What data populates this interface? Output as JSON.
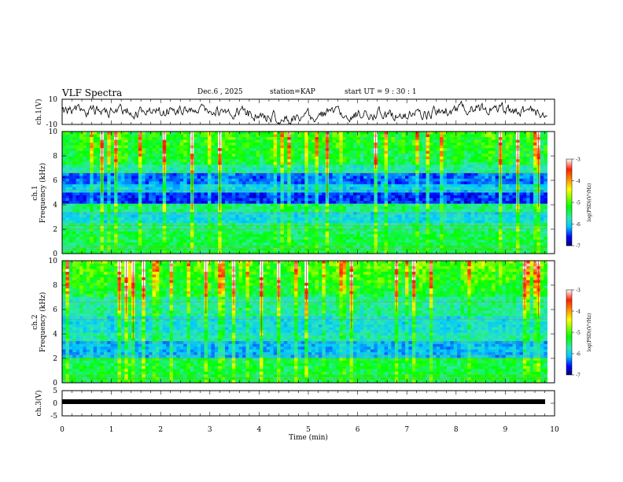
{
  "header": {
    "title": "VLF Spectra",
    "date": "Dec.6 , 2025",
    "station": "station=KAP",
    "start": "start UT = 9 : 30 : 1"
  },
  "colors": {
    "colormap": [
      "#00006e",
      "#0000ff",
      "#00c8ff",
      "#30e8b0",
      "#00ff00",
      "#ffff00",
      "#ff2000",
      "#ffffff"
    ]
  },
  "chart_data": [
    {
      "type": "line",
      "name": "ch1-voltage",
      "ylabel": "ch.1(V)",
      "ylim": [
        -10,
        10
      ],
      "yticks": [
        10,
        -10
      ],
      "xlim": [
        0,
        10
      ],
      "note": "noisy voltage trace, approximately -8 to +8 V"
    },
    {
      "type": "heatmap",
      "name": "ch1-spectrogram",
      "ylabel_line1": "ch.1",
      "ylabel_line2": "Frequency (kHz)",
      "ylim": [
        0,
        10
      ],
      "yticks": [
        0,
        2,
        4,
        6,
        8,
        10
      ],
      "xlim": [
        0,
        9.85
      ],
      "colorbar": {
        "label": "log(PSD)(V²/Hz)",
        "ticks": [
          -3,
          -4,
          -5,
          -6,
          -7
        ],
        "range": [
          -7,
          -3
        ]
      }
    },
    {
      "type": "heatmap",
      "name": "ch2-spectrogram",
      "ylabel_line1": "ch.2",
      "ylabel_line2": "Frequency (kHz)",
      "ylim": [
        0,
        10
      ],
      "yticks": [
        0,
        2,
        4,
        6,
        8,
        10
      ],
      "xlim": [
        0,
        9.85
      ],
      "colorbar": {
        "label": "log(PSD)(V²/Hz)",
        "ticks": [
          -3,
          -4,
          -5,
          -6,
          -7
        ],
        "range": [
          -7,
          -3
        ]
      }
    },
    {
      "type": "line",
      "name": "ch3-voltage",
      "ylabel": "ch.3(V)",
      "ylim": [
        -5,
        5
      ],
      "yticks": [
        5,
        0,
        -5
      ],
      "xlim": [
        0,
        10
      ],
      "note": "near-constant trace about -0.8 V"
    }
  ],
  "xaxis": {
    "label": "Time (min)",
    "ticks": [
      "0",
      "1",
      "2",
      "3",
      "4",
      "5",
      "6",
      "7",
      "8",
      "9",
      "10"
    ]
  }
}
